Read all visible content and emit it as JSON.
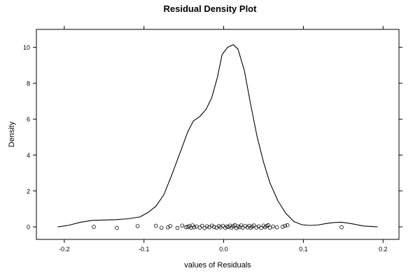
{
  "chart_data": {
    "type": "line",
    "title": "Residual Density Plot",
    "xlabel": "values of Residuals",
    "ylabel": "Density",
    "xlim": [
      -0.235,
      0.22
    ],
    "ylim": [
      -0.7,
      11.0
    ],
    "x_ticks": [
      -0.2,
      -0.1,
      0.0,
      0.1,
      0.2
    ],
    "x_tick_labels": [
      "-0.2",
      "-0.1",
      "0.0",
      "0.1",
      "0.2"
    ],
    "y_ticks": [
      0,
      2,
      4,
      6,
      8,
      10
    ],
    "y_tick_labels": [
      "0",
      "2",
      "4",
      "6",
      "8",
      "10"
    ],
    "grid": false,
    "series": [
      {
        "kind": "density-line",
        "x": [
          -0.208,
          -0.195,
          -0.18,
          -0.165,
          -0.15,
          -0.135,
          -0.12,
          -0.105,
          -0.095,
          -0.085,
          -0.075,
          -0.065,
          -0.055,
          -0.045,
          -0.038,
          -0.03,
          -0.022,
          -0.015,
          -0.008,
          -0.002,
          0.005,
          0.012,
          0.018,
          0.026,
          0.034,
          0.042,
          0.05,
          0.058,
          0.068,
          0.078,
          0.088,
          0.098,
          0.108,
          0.118,
          0.128,
          0.138,
          0.148,
          0.16,
          0.175,
          0.193
        ],
        "y": [
          0.0,
          0.08,
          0.25,
          0.36,
          0.38,
          0.4,
          0.45,
          0.55,
          0.8,
          1.15,
          1.8,
          2.9,
          4.1,
          5.3,
          5.9,
          6.15,
          6.55,
          7.2,
          8.3,
          9.6,
          10.0,
          10.15,
          9.9,
          8.7,
          6.8,
          5.0,
          3.6,
          2.45,
          1.45,
          0.75,
          0.3,
          0.12,
          0.08,
          0.1,
          0.18,
          0.24,
          0.26,
          0.18,
          0.05,
          0.0
        ]
      },
      {
        "kind": "rug-points",
        "x": [
          -0.163,
          -0.134,
          -0.108,
          -0.085,
          -0.078,
          -0.07,
          -0.067,
          -0.058,
          -0.052,
          -0.047,
          -0.045,
          -0.043,
          -0.041,
          -0.039,
          -0.037,
          -0.034,
          -0.03,
          -0.027,
          -0.024,
          -0.021,
          -0.018,
          -0.015,
          -0.012,
          -0.009,
          -0.006,
          -0.004,
          -0.001,
          0.002,
          0.004,
          0.006,
          0.008,
          0.01,
          0.012,
          0.014,
          0.016,
          0.018,
          0.02,
          0.022,
          0.024,
          0.027,
          0.03,
          0.032,
          0.034,
          0.036,
          0.038,
          0.041,
          0.044,
          0.047,
          0.05,
          0.052,
          0.054,
          0.056,
          0.058,
          0.062,
          0.067,
          0.074,
          0.077,
          0.08,
          0.148
        ],
        "y": [
          0.0,
          -0.06,
          0.04,
          0.06,
          -0.05,
          -0.03,
          0.05,
          -0.06,
          0.07,
          -0.02,
          0.0,
          0.04,
          -0.05,
          0.08,
          -0.03,
          0.02,
          -0.04,
          0.06,
          -0.07,
          0.03,
          -0.02,
          0.07,
          0.0,
          -0.05,
          0.05,
          -0.03,
          0.06,
          -0.06,
          0.02,
          -0.01,
          0.07,
          -0.04,
          0.04,
          0.09,
          -0.07,
          0.03,
          -0.02,
          0.08,
          -0.05,
          0.05,
          -0.03,
          0.06,
          -0.06,
          0.01,
          0.08,
          -0.04,
          0.03,
          -0.06,
          0.07,
          -0.02,
          0.05,
          0.09,
          -0.05,
          0.02,
          -0.03,
          0.0,
          0.06,
          0.09,
          -0.02
        ]
      }
    ]
  }
}
